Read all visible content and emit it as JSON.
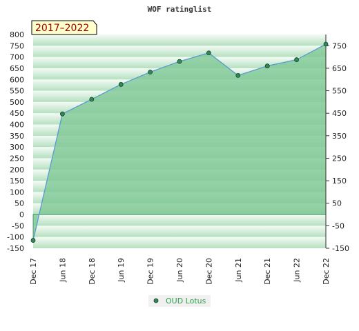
{
  "chart_data": {
    "type": "area",
    "title": "WOF ratinglist",
    "period_label": "2017–2022",
    "x": [
      "Dec 17",
      "Jun 18",
      "Dec 18",
      "Jun 19",
      "Dec 19",
      "Jun 20",
      "Dec 20",
      "Jun 21",
      "Dec 21",
      "Jun 22",
      "Dec 22"
    ],
    "series": [
      {
        "name": "OUD Lotus",
        "values": [
          -115,
          447,
          512,
          578,
          633,
          680,
          718,
          618,
          660,
          688,
          757
        ]
      }
    ],
    "ylim": [
      -150,
      800
    ],
    "y_ticks_left": [
      800,
      750,
      700,
      650,
      600,
      550,
      500,
      450,
      400,
      350,
      300,
      250,
      200,
      150,
      100,
      50,
      0,
      -50,
      -100,
      -150
    ],
    "y_ticks_right": [
      750,
      650,
      550,
      450,
      350,
      250,
      150,
      50,
      -50,
      -150
    ],
    "grid": true,
    "legend_position": "bottom",
    "colors": {
      "fill": "#7ec895",
      "line": "#5b9bd5",
      "marker": "#2e8b57",
      "legend_text": "#2e9e4e",
      "badge_bg": "#ffffcc"
    }
  }
}
